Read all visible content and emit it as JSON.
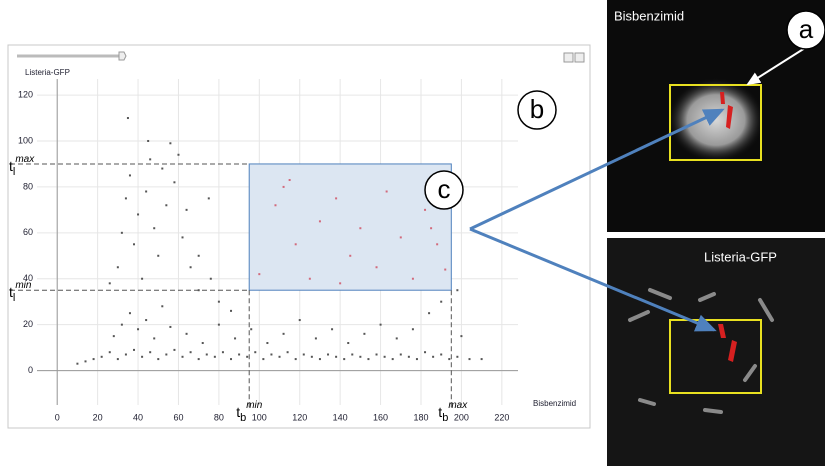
{
  "chart_data": {
    "type": "scatter",
    "y_label": "Listeria-GFP",
    "x_label": "Bisbenzimid",
    "xlim": [
      -10,
      228
    ],
    "ylim": [
      -15,
      127
    ],
    "xticks": [
      0,
      20,
      40,
      60,
      80,
      100,
      120,
      140,
      160,
      180,
      200,
      220
    ],
    "yticks": [
      0,
      20,
      40,
      60,
      80,
      100,
      120
    ],
    "grid": true,
    "color": "#555555",
    "selected_color": "#d26a7c",
    "selection": {
      "xmin": 95,
      "xmax": 195,
      "ymin": 35,
      "ymax": 90
    },
    "threshold_labels": {
      "y_max": {
        "base": "t",
        "sub": "l",
        "sup": "max"
      },
      "y_min": {
        "base": "t",
        "sub": "l",
        "sup": "min"
      },
      "x_min": {
        "base": "t",
        "sub": "b",
        "sup": "min"
      },
      "x_max": {
        "base": "t",
        "sub": "b",
        "sup": "max"
      }
    },
    "x": [
      10,
      14,
      18,
      22,
      26,
      30,
      34,
      38,
      42,
      46,
      50,
      54,
      58,
      62,
      66,
      70,
      74,
      78,
      82,
      86,
      90,
      94,
      98,
      102,
      106,
      110,
      114,
      118,
      122,
      126,
      130,
      134,
      138,
      142,
      146,
      150,
      154,
      158,
      162,
      166,
      170,
      174,
      178,
      182,
      186,
      190,
      194,
      198,
      204,
      210,
      28,
      32,
      36,
      40,
      44,
      48,
      52,
      56,
      64,
      72,
      80,
      88,
      96,
      104,
      112,
      120,
      128,
      136,
      144,
      152,
      160,
      168,
      176,
      184,
      190,
      200,
      30,
      32,
      34,
      36,
      38,
      40,
      42,
      44,
      46,
      48,
      50,
      52,
      54,
      56,
      58,
      60,
      62,
      64,
      26,
      45,
      35,
      66,
      70,
      76,
      80,
      100,
      108,
      112,
      118,
      125,
      130,
      138,
      145,
      150,
      158,
      163,
      170,
      176,
      182,
      188,
      192,
      115,
      140,
      185,
      75,
      70,
      86,
      198
    ],
    "y": [
      3,
      4,
      5,
      6,
      8,
      5,
      7,
      9,
      6,
      8,
      5,
      7,
      9,
      6,
      8,
      5,
      7,
      6,
      8,
      5,
      7,
      6,
      8,
      5,
      7,
      6,
      8,
      5,
      7,
      6,
      5,
      7,
      6,
      5,
      7,
      6,
      5,
      7,
      6,
      5,
      7,
      6,
      5,
      8,
      6,
      7,
      5,
      6,
      5,
      5,
      15,
      20,
      25,
      18,
      22,
      14,
      28,
      19,
      16,
      12,
      20,
      14,
      18,
      12,
      16,
      22,
      14,
      18,
      12,
      16,
      20,
      14,
      18,
      25,
      30,
      15,
      45,
      60,
      75,
      85,
      55,
      68,
      40,
      78,
      92,
      62,
      50,
      88,
      72,
      99,
      82,
      94,
      58,
      70,
      38,
      100,
      110,
      45,
      35,
      40,
      30,
      42,
      72,
      80,
      55,
      40,
      65,
      75,
      50,
      62,
      45,
      78,
      58,
      40,
      70,
      55,
      44,
      83,
      38,
      62,
      75,
      50,
      26,
      35
    ]
  },
  "panels": {
    "a": "a",
    "b": "b",
    "c": "c"
  },
  "images": {
    "top_label": "Bisbenzimid",
    "bottom_label": "Listeria-GFP"
  }
}
